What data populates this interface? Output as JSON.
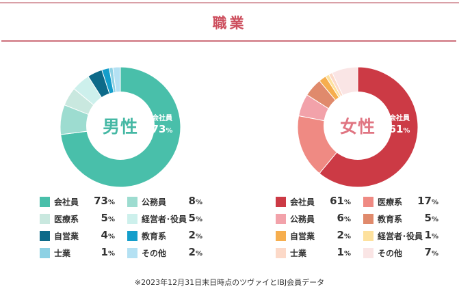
{
  "title": "職業",
  "footnote": "※2023年12月31日末日時点のツヴァイとIBJ会員データ",
  "percent_unit": "%",
  "chart_data": [
    {
      "type": "pie",
      "center_label": "男性",
      "center_color": "#45b8a4",
      "highlight": {
        "name": "会社員",
        "value": 73
      },
      "categories": [
        "会社員",
        "公務員",
        "医療系",
        "経営者･役員",
        "自営業",
        "教育系",
        "士業",
        "その他"
      ],
      "values": [
        73,
        8,
        5,
        5,
        4,
        2,
        1,
        2
      ],
      "colors": [
        "#49bfaa",
        "#9ddcd0",
        "#c9e8df",
        "#cdf0ec",
        "#0d6a89",
        "#149ecb",
        "#8dd1e4",
        "#b4e1f3"
      ]
    },
    {
      "type": "pie",
      "center_label": "女性",
      "center_color": "#e07582",
      "highlight": {
        "name": "会社員",
        "value": 61
      },
      "categories": [
        "会社員",
        "医療系",
        "公務員",
        "教育系",
        "自営業",
        "経営者･役員",
        "士業",
        "その他"
      ],
      "values": [
        61,
        17,
        6,
        5,
        2,
        1,
        1,
        7
      ],
      "colors": [
        "#cc3a45",
        "#ef8a83",
        "#f2a2aa",
        "#e08a6c",
        "#f6ae4e",
        "#fde19e",
        "#fcd9c8",
        "#fae5e5"
      ]
    }
  ]
}
